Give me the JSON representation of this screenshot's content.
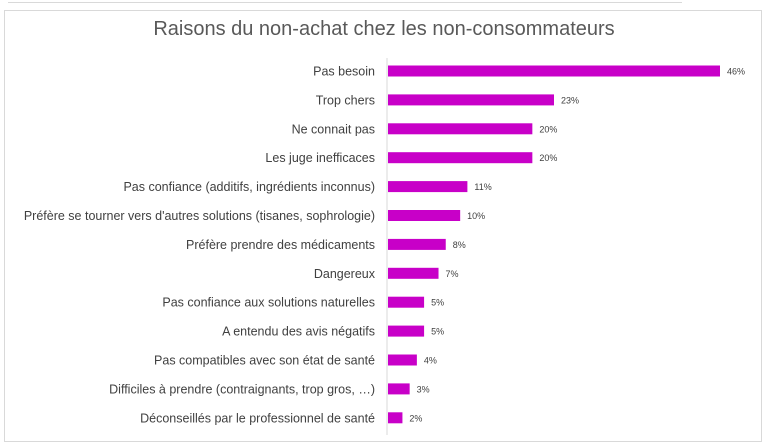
{
  "chart_data": {
    "type": "bar",
    "orientation": "horizontal",
    "title": "Raisons du non-achat chez les non-consommateurs",
    "color": "#C800C8",
    "categories": [
      "Pas besoin",
      "Trop chers",
      "Ne connait pas",
      "Les juge inefficaces",
      "Pas confiance (additifs, ingrédients inconnus)",
      "Préfère se tourner vers d'autres solutions (tisanes, sophrologie)",
      "Préfère prendre des médicaments",
      "Dangereux",
      "Pas confiance aux solutions naturelles",
      "A entendu des avis négatifs",
      "Pas compatibles avec son état de santé",
      "Difficiles à prendre (contraignants, trop gros, …)",
      "Déconseillés par le professionnel de santé"
    ],
    "values": [
      46,
      23,
      20,
      20,
      11,
      10,
      8,
      7,
      5,
      5,
      4,
      3,
      2
    ],
    "value_labels": [
      "46%",
      "23%",
      "20%",
      "20%",
      "11%",
      "10%",
      "8%",
      "7%",
      "5%",
      "5%",
      "4%",
      "3%",
      "2%"
    ],
    "xlim": [
      0,
      46
    ],
    "grid": false,
    "legend": "none"
  }
}
